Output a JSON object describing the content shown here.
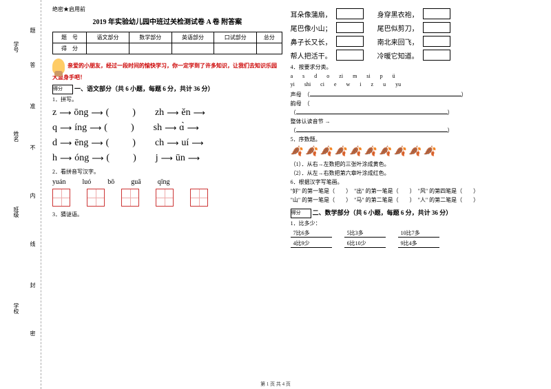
{
  "margin": {
    "l1": "学号",
    "l2": "姓名",
    "l3": "班级",
    "l4": "学校",
    "d1": "题",
    "d2": "答",
    "d3": "准",
    "d4": "不",
    "d5": "内",
    "d6": "线",
    "d7": "封",
    "d8": "密"
  },
  "header": {
    "secret": "绝密★启用前",
    "title": "2019 年实验幼儿园中班过关检测试卷 A 卷 附答案"
  },
  "scoreTable": {
    "r1": [
      "题　号",
      "语文部分",
      "数学部分",
      "英语部分",
      "口试部分",
      "总分"
    ],
    "r2": [
      "得　分",
      "",
      "",
      "",
      "",
      ""
    ]
  },
  "intro": "亲爱的小朋友，经过一段时间的愉快学习，你一定学到了许多知识，让我们去知识乐园大显身手吧！",
  "scoreLabel": "得分",
  "sec1": {
    "title": "一、语文部分（共 6 小题，每题 6 分，共计 36 分）"
  },
  "q1": {
    "label": "1．拼写。",
    "rows": [
      [
        "z",
        "ōng",
        "zh",
        "ěn"
      ],
      [
        "q",
        "íng",
        "sh",
        "ɑ̀"
      ],
      [
        "d",
        "ēng",
        "ch",
        "uí"
      ],
      [
        "h",
        "óng",
        "j",
        "ūn"
      ]
    ]
  },
  "q2": {
    "label": "2．看拼音写汉字。",
    "py": [
      "yuán",
      "luó",
      "bō",
      "guā",
      "qīng"
    ]
  },
  "q3": {
    "label": "3．猜谜语。"
  },
  "riddles": [
    [
      "耳朵像蒲扇，",
      "身穿黑衣袍，"
    ],
    [
      "尾巴像小山；",
      "尾巴似剪刀，"
    ],
    [
      "鼻子长又长，",
      "南北来回飞，"
    ],
    [
      "帮人把活干。",
      "冷暖它知道。"
    ]
  ],
  "q4": {
    "label": "4．按要求分类。",
    "row1": [
      "a",
      "s",
      "d",
      "o",
      "zi",
      "m",
      "si",
      "p",
      "ü"
    ],
    "row2": [
      "yi",
      "shi",
      "ci",
      "e",
      "w",
      "i",
      "z",
      "u",
      "yu"
    ],
    "l1": "声母",
    "l2": "韵母",
    "l3": "整体认读音节"
  },
  "q5": {
    "label": "5．序数题。",
    "s1": "（1）．从右→左数把的三张叶涂成黄色。",
    "s2": "（2）．从左→右数把第六章叶涂成红色。"
  },
  "q6": {
    "label": "6．根据汉字写笔画。",
    "items": [
      "\"好\" 的第一笔是（　　）",
      "\"出\" 的第一笔是（　　）",
      "\"风\" 的第四笔是（　　）",
      "\"山\" 的第一笔是（　　）",
      "\"马\" 的第二笔是（　　）",
      "\"人\" 的第二笔是（　　）"
    ]
  },
  "sec2": {
    "title": "二、数学部分（共 6 小题，每题 6 分，共计 36 分）"
  },
  "m1": {
    "label": "1．比多少：",
    "row1": [
      "7比6多",
      "5比3多",
      "10比7多"
    ],
    "row2": [
      "4比9少",
      "6比10少",
      "9比4多"
    ]
  },
  "footer": "第 1 页 共 4 页"
}
